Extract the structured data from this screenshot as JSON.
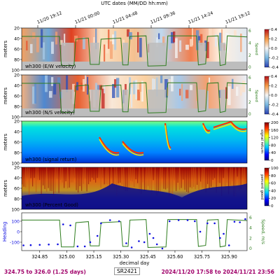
{
  "figure": {
    "top_axis_title": "UTC dates (MM/DD hh:mm)",
    "top_ticks": [
      "11/20 19:12",
      "11/21 00:00",
      "11/21 04:48",
      "11/21 09:36",
      "11/21 14:24",
      "11/21 19:12"
    ],
    "bottom_axis_title": "decimal day"
  },
  "footer": {
    "left": "324.75 to 326.0 (1.25 days)",
    "cruise": "SR2421",
    "right": "2024/11/20 17:58 to 2024/11/21 23:56"
  },
  "colors": {
    "speed_line": "#2e7d1e",
    "heading_dots": "#1010e0",
    "footer_text": "#a0006a",
    "bad_data": "#bdbdbd",
    "pg_low": "#1a1a9a"
  },
  "chart_data": [
    {
      "type": "heatmap",
      "panel_label": "wh300 (E/W velocity)",
      "ylabel": "meters",
      "ylim": [
        100,
        20
      ],
      "y_ticks": [
        20,
        40,
        60,
        80,
        100
      ],
      "colorbar": {
        "ticks": [
          "0.4",
          "0.2",
          "0.0",
          "-0.2",
          "-0.4"
        ],
        "range": [
          -0.4,
          0.4
        ],
        "colormap": "RdBu_r"
      },
      "right_axis": {
        "label": "Speed",
        "ticks": [
          "6",
          "4",
          "2",
          "0"
        ]
      },
      "overlay_line": "ship speed (green)"
    },
    {
      "type": "heatmap",
      "panel_label": "wh300 (N/S velocity)",
      "ylabel": "meters",
      "ylim": [
        100,
        20
      ],
      "y_ticks": [
        20,
        40,
        60,
        80,
        100
      ],
      "colorbar": {
        "ticks": [
          "0.4",
          "0.2",
          "0.0",
          "-0.2",
          "-0.4"
        ],
        "range": [
          -0.4,
          0.4
        ],
        "colormap": "RdBu_r"
      },
      "right_axis": {
        "label": "Speed",
        "ticks": [
          "6",
          "4",
          "2",
          "0"
        ]
      },
      "overlay_line": "ship speed (green)"
    },
    {
      "type": "heatmap",
      "panel_label": "wh300 (signal return)",
      "ylabel": "meters",
      "ylim": [
        100,
        20
      ],
      "y_ticks": [
        20,
        40,
        60,
        80,
        100
      ],
      "colorbar": {
        "label": "signal return",
        "ticks": [
          "200",
          "160",
          "120",
          "80",
          "40",
          "0"
        ],
        "range": [
          0,
          200
        ],
        "colormap": "jet"
      }
    },
    {
      "type": "heatmap",
      "panel_label": "wh300 (Percent Good)",
      "ylabel": "meters",
      "ylim": [
        100,
        20
      ],
      "y_ticks": [
        20,
        40,
        60,
        80,
        100
      ],
      "colorbar": {
        "label": "percent good",
        "ticks": [
          "100",
          "80",
          "60",
          "40",
          "20",
          "0"
        ],
        "range": [
          0,
          100
        ],
        "colormap": "jet"
      }
    },
    {
      "type": "scatter",
      "ylabel": "Heading",
      "ylim": [
        -180,
        180
      ],
      "y_ticks": [
        "100",
        "0",
        "-100"
      ],
      "right_axis": {
        "label": "Speed, m/s",
        "ticks": [
          "6",
          "4",
          "2",
          "0"
        ]
      },
      "xlim": [
        324.75,
        326.0
      ],
      "x_ticks": [
        "324.85",
        "325.00",
        "325.15",
        "325.30",
        "325.45",
        "325.60",
        "325.75",
        "325.90"
      ],
      "series": [
        {
          "values_desc": "heading",
          "points": [
            [
              324.76,
              -130
            ],
            [
              324.8,
              -128
            ],
            [
              324.85,
              -125
            ],
            [
              324.9,
              -122
            ],
            [
              324.95,
              -120
            ],
            [
              324.98,
              70
            ],
            [
              325.02,
              60
            ],
            [
              325.06,
              -140
            ],
            [
              325.1,
              -140
            ],
            [
              325.13,
              -100
            ],
            [
              325.17,
              -40
            ],
            [
              325.19,
              80
            ],
            [
              325.24,
              110
            ],
            [
              325.29,
              100
            ],
            [
              325.33,
              -110
            ],
            [
              325.36,
              -150
            ],
            [
              325.4,
              -90
            ],
            [
              325.43,
              -100
            ],
            [
              325.46,
              -20
            ],
            [
              325.48,
              -60
            ],
            [
              325.5,
              -120
            ],
            [
              325.53,
              -160
            ],
            [
              325.57,
              100
            ],
            [
              325.62,
              110
            ],
            [
              325.67,
              110
            ],
            [
              325.71,
              100
            ],
            [
              325.74,
              0
            ],
            [
              325.78,
              80
            ],
            [
              325.82,
              80
            ],
            [
              325.85,
              -60
            ],
            [
              325.87,
              -20
            ],
            [
              325.9,
              -130
            ],
            [
              325.93,
              95
            ],
            [
              325.96,
              90
            ],
            [
              325.99,
              120
            ]
          ]
        },
        {
          "values_desc": "speed",
          "points": [
            [
              324.75,
              5.5
            ],
            [
              324.96,
              5.5
            ],
            [
              324.97,
              0.3
            ],
            [
              325.04,
              0.3
            ],
            [
              325.05,
              5.0
            ],
            [
              325.12,
              5.2
            ],
            [
              325.13,
              0.5
            ],
            [
              325.18,
              0.5
            ],
            [
              325.19,
              5.0
            ],
            [
              325.3,
              5.2
            ],
            [
              325.31,
              0.4
            ],
            [
              325.34,
              0.4
            ],
            [
              325.35,
              5.5
            ],
            [
              325.44,
              5.6
            ],
            [
              325.45,
              0.2
            ],
            [
              325.55,
              0.3
            ],
            [
              325.56,
              5.6
            ],
            [
              325.72,
              5.6
            ],
            [
              325.73,
              0.4
            ],
            [
              325.77,
              0.6
            ],
            [
              325.78,
              5.5
            ],
            [
              325.84,
              5.6
            ],
            [
              325.85,
              0.3
            ],
            [
              325.88,
              0.5
            ],
            [
              325.89,
              5.6
            ],
            [
              326.0,
              5.4
            ]
          ]
        }
      ]
    }
  ]
}
